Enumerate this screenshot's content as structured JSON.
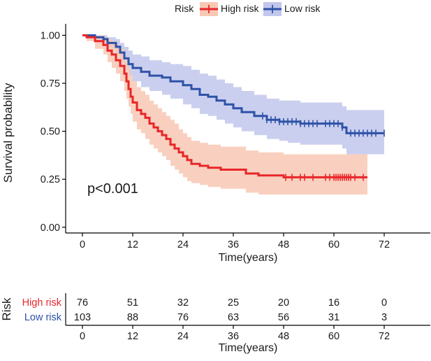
{
  "colors": {
    "high": "#E8262A",
    "high_band": "#F8C8B4",
    "low": "#2E52A7",
    "low_band": "#C2C7EC",
    "axis": "#000000",
    "text": "#1a1a1a"
  },
  "legend": {
    "title": "Risk",
    "items": [
      {
        "label": "High risk",
        "color": "#E8262A",
        "band": "#F8C8B4"
      },
      {
        "label": "Low risk",
        "color": "#2E52A7",
        "band": "#C2C7EC"
      }
    ]
  },
  "chart_data": [
    {
      "type": "line",
      "subtype": "kaplan-meier",
      "title": "",
      "xlabel": "Time(years)",
      "ylabel": "Survival probability",
      "xlim": [
        -4,
        83
      ],
      "ylim": [
        -0.03,
        1.06
      ],
      "xticks": [
        "0",
        "12",
        "24",
        "36",
        "48",
        "60",
        "72"
      ],
      "xtick_values": [
        0,
        12,
        24,
        36,
        48,
        60,
        72
      ],
      "yticks": [
        "0.00",
        "0.25",
        "0.50",
        "0.75",
        "1.00"
      ],
      "ytick_values": [
        0,
        0.25,
        0.5,
        0.75,
        1.0
      ],
      "annotation": "p<0.001",
      "series": [
        {
          "name": "High risk",
          "x": [
            0,
            1,
            3,
            5,
            6,
            7,
            8,
            9,
            10,
            10.5,
            11,
            11.5,
            12,
            13,
            14,
            15,
            16,
            17,
            18,
            19,
            20,
            21,
            22,
            23,
            24,
            25,
            26,
            28,
            30,
            33,
            36,
            39,
            42,
            48,
            56,
            62,
            68
          ],
          "y": [
            1.0,
            0.99,
            0.97,
            0.95,
            0.92,
            0.9,
            0.87,
            0.84,
            0.8,
            0.76,
            0.72,
            0.68,
            0.65,
            0.61,
            0.59,
            0.57,
            0.54,
            0.52,
            0.5,
            0.48,
            0.46,
            0.43,
            0.41,
            0.39,
            0.37,
            0.35,
            0.33,
            0.32,
            0.31,
            0.3,
            0.3,
            0.28,
            0.27,
            0.26,
            0.26,
            0.26,
            0.26
          ],
          "lower": [
            1.0,
            0.97,
            0.93,
            0.9,
            0.86,
            0.83,
            0.8,
            0.76,
            0.71,
            0.67,
            0.63,
            0.59,
            0.55,
            0.51,
            0.49,
            0.46,
            0.43,
            0.41,
            0.39,
            0.37,
            0.35,
            0.32,
            0.3,
            0.28,
            0.26,
            0.24,
            0.23,
            0.22,
            0.21,
            0.2,
            0.2,
            0.18,
            0.17,
            0.17,
            0.17,
            0.17,
            0.17
          ],
          "upper": [
            1.0,
            1.0,
            1.0,
            0.99,
            0.98,
            0.97,
            0.95,
            0.93,
            0.89,
            0.86,
            0.83,
            0.79,
            0.76,
            0.73,
            0.71,
            0.69,
            0.66,
            0.64,
            0.62,
            0.6,
            0.58,
            0.56,
            0.54,
            0.51,
            0.49,
            0.47,
            0.45,
            0.44,
            0.43,
            0.42,
            0.42,
            0.4,
            0.39,
            0.38,
            0.38,
            0.38,
            0.38
          ],
          "censor_x": [
            48.5,
            50,
            52,
            53,
            55,
            58,
            59,
            60,
            60.5,
            61,
            61.5,
            62,
            62.5,
            63,
            63.5,
            64,
            65,
            67
          ]
        },
        {
          "name": "Low risk",
          "x": [
            0,
            3,
            5,
            6,
            8,
            9,
            10,
            11,
            12,
            14,
            16,
            19,
            21,
            24,
            26,
            28,
            30,
            32,
            34,
            36,
            38,
            41,
            44,
            47,
            49,
            52,
            62,
            63,
            72
          ],
          "y": [
            1.0,
            0.99,
            0.98,
            0.96,
            0.94,
            0.91,
            0.88,
            0.85,
            0.83,
            0.81,
            0.79,
            0.78,
            0.76,
            0.74,
            0.72,
            0.69,
            0.68,
            0.66,
            0.64,
            0.62,
            0.6,
            0.58,
            0.56,
            0.55,
            0.55,
            0.54,
            0.52,
            0.49,
            0.49
          ],
          "lower": [
            1.0,
            0.98,
            0.96,
            0.93,
            0.9,
            0.86,
            0.82,
            0.79,
            0.76,
            0.73,
            0.71,
            0.69,
            0.67,
            0.64,
            0.62,
            0.59,
            0.58,
            0.56,
            0.54,
            0.52,
            0.5,
            0.48,
            0.46,
            0.45,
            0.44,
            0.43,
            0.41,
            0.38,
            0.38
          ],
          "upper": [
            1.0,
            1.0,
            1.0,
            0.99,
            0.98,
            0.96,
            0.94,
            0.92,
            0.9,
            0.89,
            0.87,
            0.86,
            0.85,
            0.84,
            0.82,
            0.8,
            0.79,
            0.77,
            0.75,
            0.73,
            0.71,
            0.69,
            0.67,
            0.66,
            0.66,
            0.65,
            0.63,
            0.61,
            0.61
          ],
          "censor_x": [
            43,
            44,
            45,
            46,
            47,
            48,
            49,
            50,
            51,
            52,
            53,
            54,
            55,
            56,
            58,
            59,
            60,
            61,
            62,
            64,
            65,
            66,
            67,
            68,
            69,
            70,
            72
          ]
        }
      ]
    },
    {
      "type": "table",
      "title": "Risk",
      "xlabel": "Time(years)",
      "xticks": [
        "0",
        "12",
        "24",
        "36",
        "48",
        "60",
        "72"
      ],
      "xtick_values": [
        0,
        12,
        24,
        36,
        48,
        60,
        72
      ],
      "rows": [
        {
          "label": "High risk",
          "color": "#E8262A",
          "values": [
            "76",
            "51",
            "32",
            "25",
            "20",
            "16",
            "0"
          ]
        },
        {
          "label": "Low risk",
          "color": "#2E52A7",
          "values": [
            "103",
            "88",
            "76",
            "63",
            "56",
            "31",
            "3"
          ]
        }
      ]
    }
  ]
}
